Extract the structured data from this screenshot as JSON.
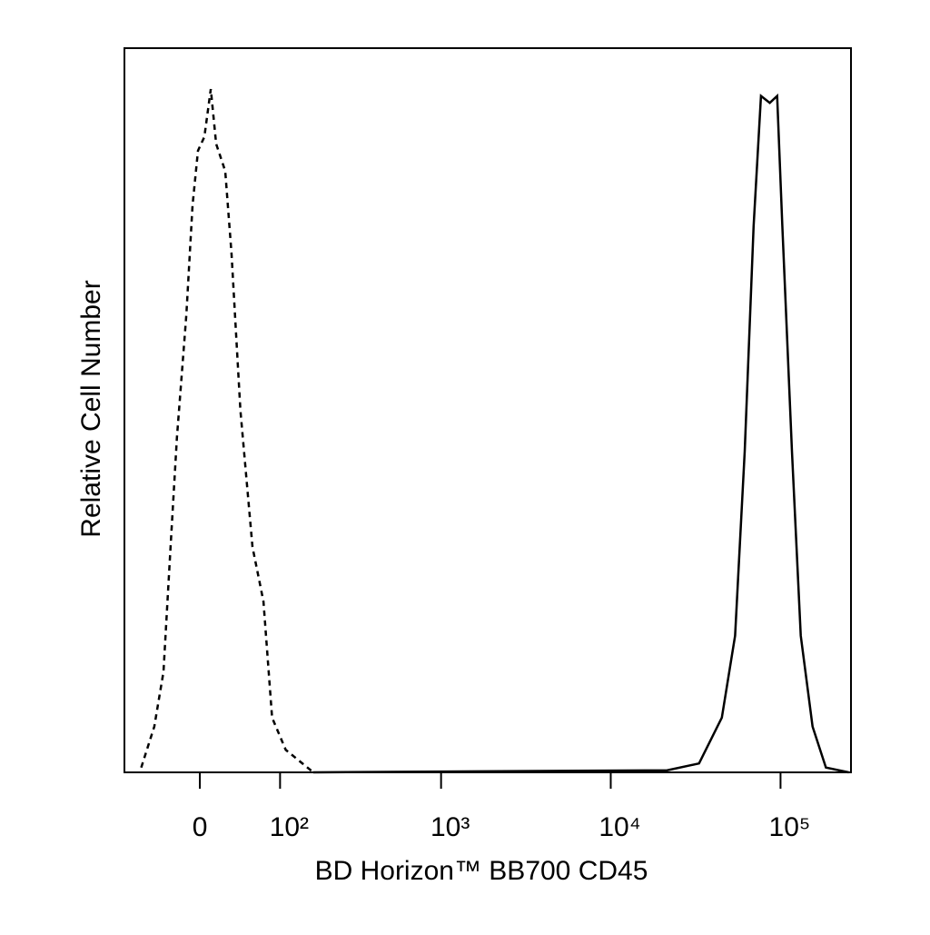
{
  "chart_data": {
    "type": "line",
    "xlabel": "BD Horizon™ BB700 CD45",
    "ylabel": "Relative Cell Number",
    "xscale": "biexponential",
    "xlim": [
      -92,
      260000
    ],
    "ylim": [
      0,
      106
    ],
    "xticks": [
      0,
      {
        "value": 100,
        "label": "10²"
      },
      {
        "value": 1000,
        "label": "10³"
      },
      {
        "value": 10000,
        "label": "10⁴"
      },
      {
        "value": 100000,
        "label": "10⁵"
      }
    ],
    "series": [
      {
        "color": "#000000",
        "linestyle": "dashed",
        "x": [
          -67,
          -50,
          -39,
          -31,
          -24,
          -14,
          -7.5,
          -1.9,
          4.7,
          11.3,
          17,
          26.7,
          33.7,
          44,
          59,
          74,
          87,
          110,
          169
        ],
        "values": [
          0.7,
          6.7,
          14.7,
          33,
          49,
          67,
          83,
          91,
          93,
          100,
          92,
          88,
          76,
          53,
          33,
          25,
          8,
          3.3,
          0
        ]
      },
      {
        "color": "#000000",
        "linestyle": "solid",
        "x": [
          169,
          21500,
          33100,
          45100,
          54000,
          61500,
          69400,
          76700,
          86500,
          95500,
          102500,
          116700,
          131600,
          154400,
          185000,
          252000
        ],
        "values": [
          0,
          0.3,
          1.3,
          8,
          20,
          47,
          80,
          99,
          98,
          99,
          80,
          47,
          20,
          6.7,
          0.7,
          0
        ]
      }
    ]
  }
}
